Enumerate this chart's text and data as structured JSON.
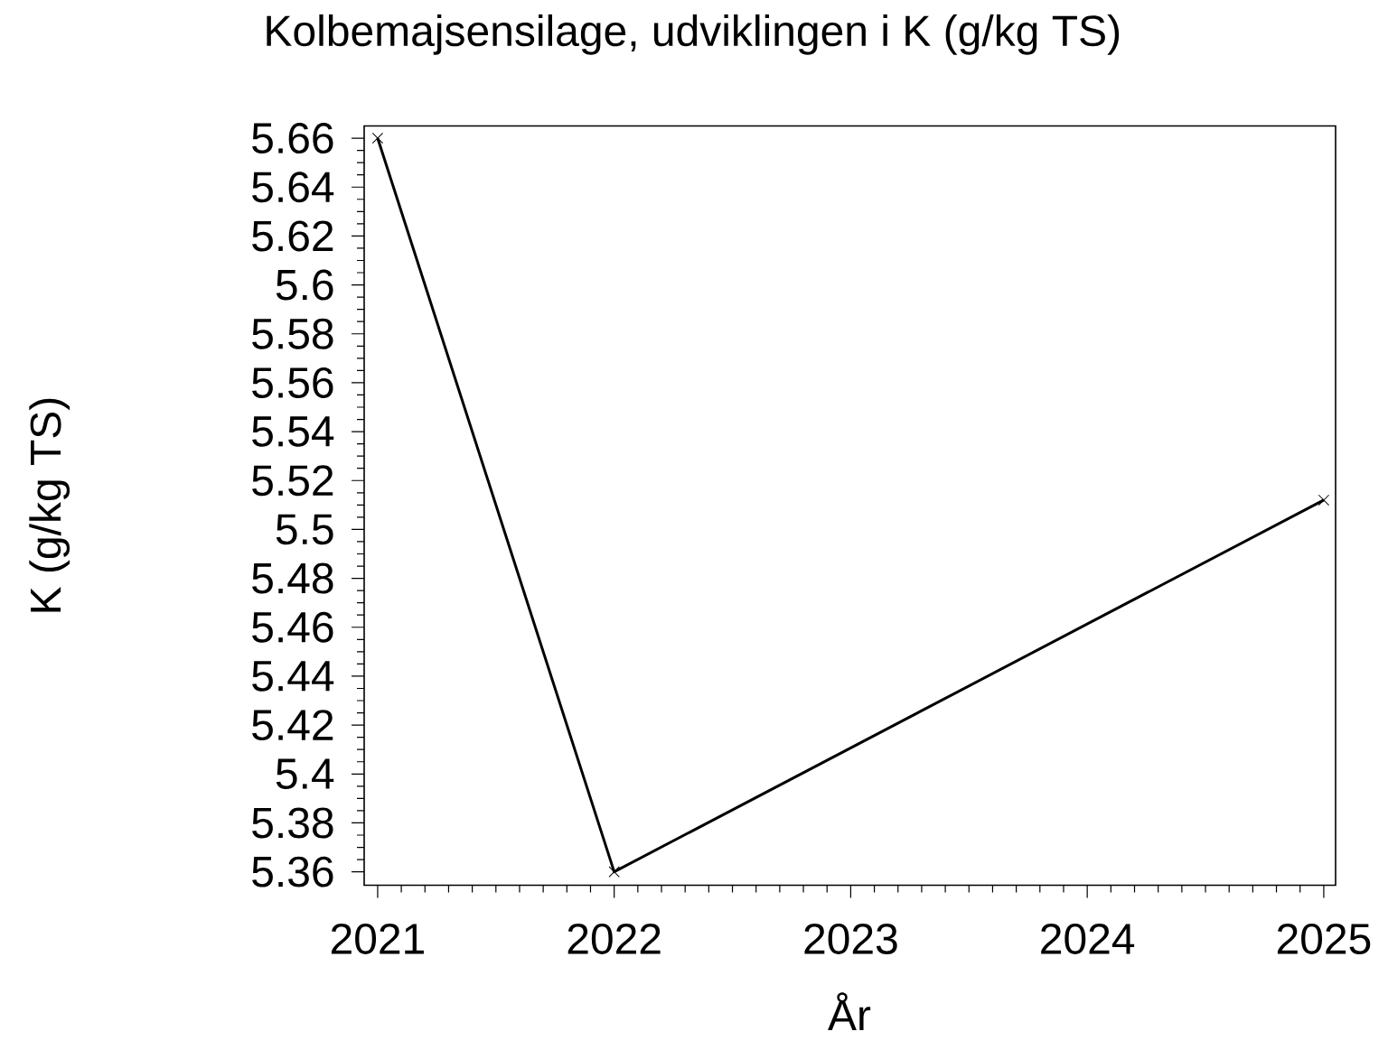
{
  "chart_data": {
    "type": "line",
    "title": "Kolbemajsensilage, udviklingen i K (g/kg TS)",
    "xlabel": "År",
    "ylabel": "K (g/kg TS)",
    "x": [
      2021,
      2022,
      2025
    ],
    "series": [
      {
        "color": "#000000",
        "values": [
          5.66,
          5.36,
          5.512
        ]
      }
    ],
    "marker": "cross",
    "line_style": "solid",
    "xlim": [
      2020.943,
      2025.05
    ],
    "ylim": [
      5.3545,
      5.665
    ],
    "xticks": [
      2021,
      2022,
      2023,
      2024,
      2025
    ],
    "yticks": [
      5.36,
      5.38,
      5.4,
      5.42,
      5.44,
      5.46,
      5.48,
      5.5,
      5.52,
      5.54,
      5.56,
      5.58,
      5.6,
      5.62,
      5.64,
      5.66
    ]
  }
}
